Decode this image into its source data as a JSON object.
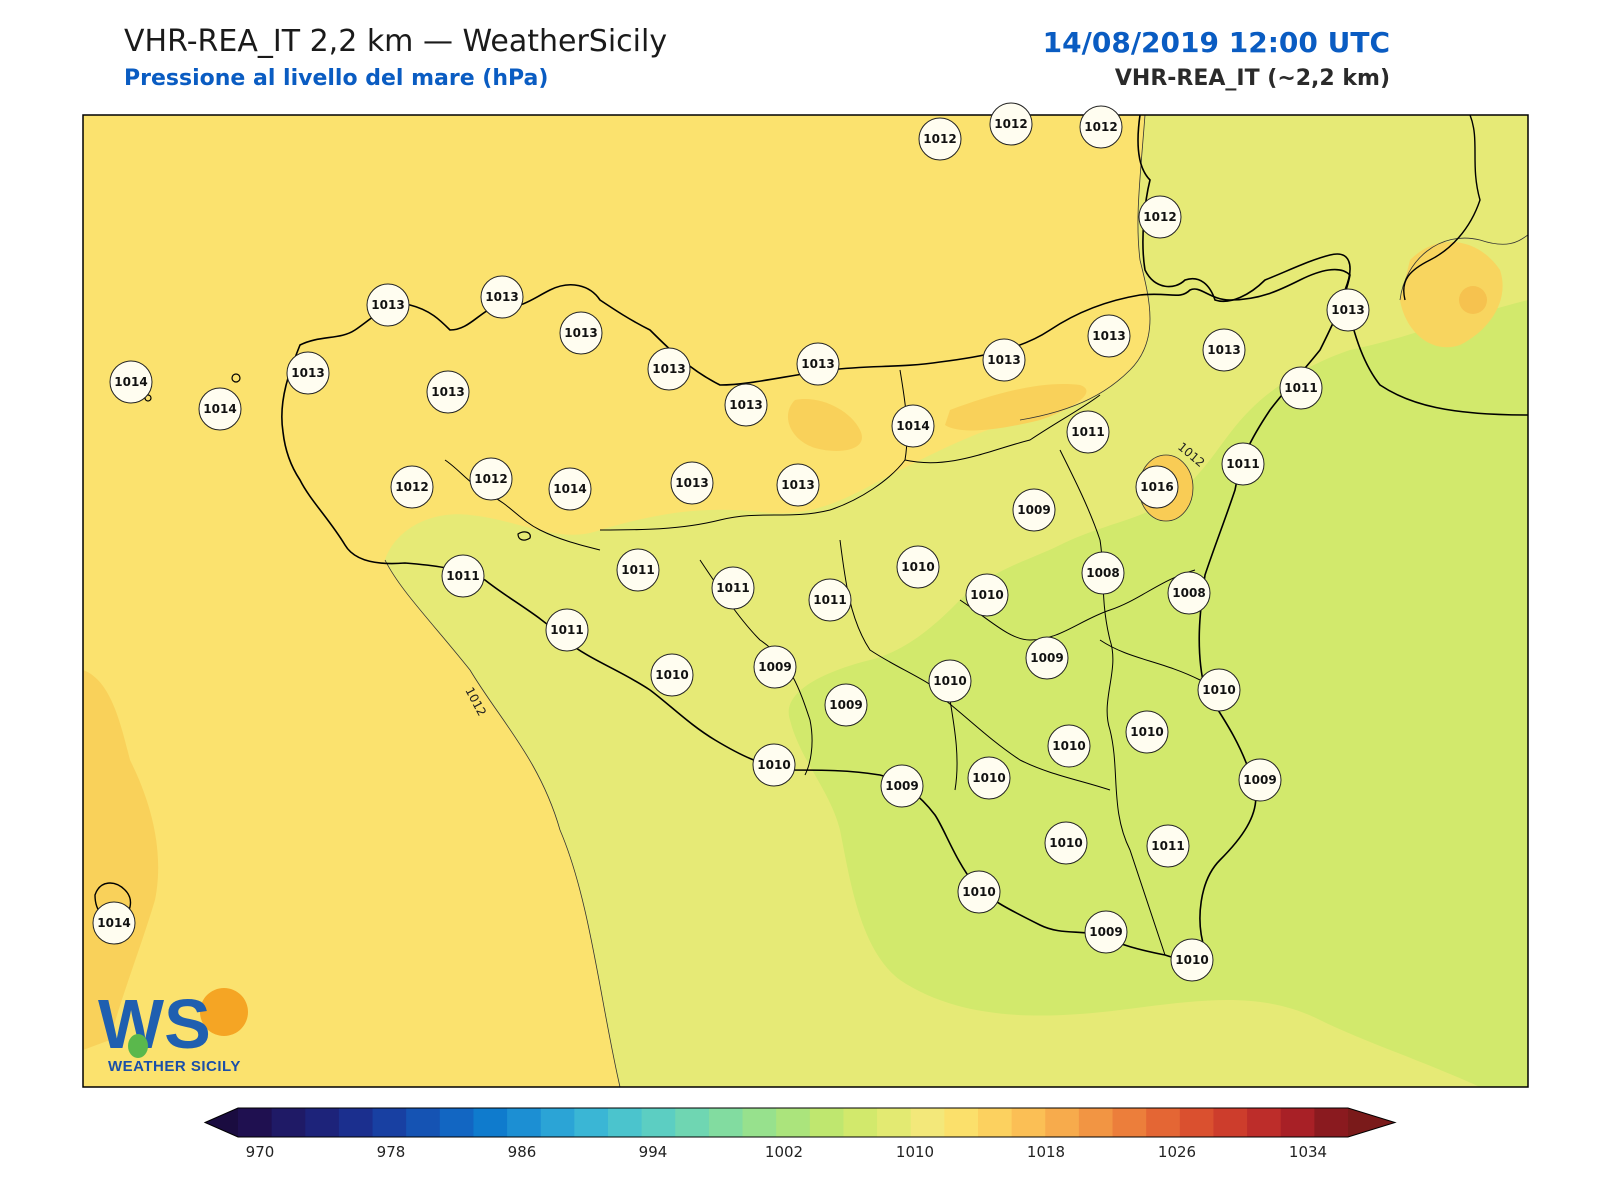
{
  "header": {
    "title": "VHR-REA_IT 2,2 km — WeatherSicily",
    "subtitle": "Pressione al livello del mare (hPa)",
    "datetime": "14/08/2019 12:00 UTC",
    "model": "VHR-REA_IT (~2,2 km)"
  },
  "logo": {
    "text": "WEATHER SICILY",
    "letters": "WS"
  },
  "contours": [
    {
      "label": "1012"
    },
    {
      "label": "1012"
    }
  ],
  "stations": [
    "1012",
    "1012",
    "1012",
    "1012",
    "1013",
    "1013",
    "1013",
    "1013",
    "1013",
    "1013",
    "1013",
    "1013",
    "1013",
    "1011",
    "1014",
    "1014",
    "1013",
    "1013",
    "1013",
    "1014",
    "1011",
    "1011",
    "1009",
    "1016",
    "1008",
    "1012",
    "1012",
    "1014",
    "1013",
    "1013",
    "1010",
    "1011",
    "1011",
    "1011",
    "1011",
    "1010",
    "1008",
    "1009",
    "1011",
    "1010",
    "1009",
    "1009",
    "1010",
    "1010",
    "1010",
    "1010",
    "1009",
    "1009",
    "1010",
    "1010",
    "1010",
    "1011",
    "1010",
    "1009",
    "1010",
    "1014"
  ],
  "colorbar": {
    "ticks": [
      "970",
      "978",
      "986",
      "994",
      "1002",
      "1010",
      "1018",
      "1026",
      "1034"
    ],
    "colors": [
      "#1f1050",
      "#1f1a66",
      "#1d237a",
      "#1b2f8e",
      "#1840a2",
      "#1553b3",
      "#1266c2",
      "#0f7bcd",
      "#1c8fd3",
      "#2ba4d6",
      "#3ab6d5",
      "#4bc4cd",
      "#5ccec2",
      "#6fd6b2",
      "#82dca0",
      "#97e18d",
      "#abe47c",
      "#bfe76f",
      "#d2e96c",
      "#e3ea72",
      "#f3e87a",
      "#fbe06b",
      "#fcd15f",
      "#fbbf55",
      "#f7ab4c",
      "#f29543",
      "#ec7e3b",
      "#e46634",
      "#da502f",
      "#cd3d2c",
      "#bd2d2a",
      "#a82026",
      "#8a1a1f"
    ],
    "min_color": "#1a0c40",
    "max_color": "#7a1a1a"
  },
  "fill_colors": {
    "high_1014": "#fbe26e",
    "high_1016": "#f9d15a",
    "mid_1012": "#e6ea76",
    "low_1010": "#d2e96c"
  }
}
